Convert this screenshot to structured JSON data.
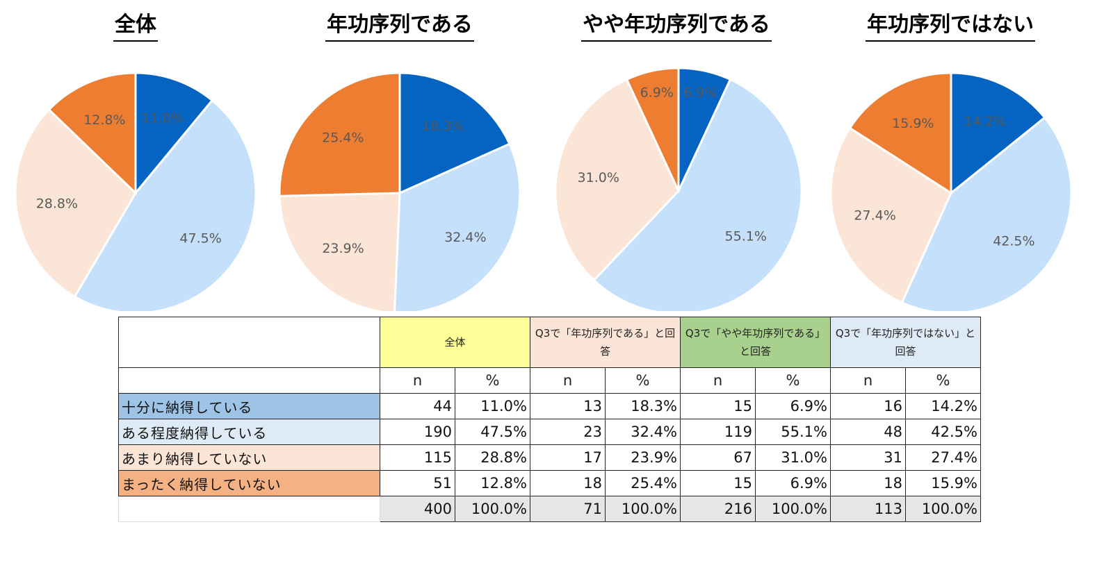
{
  "chart_data": [
    {
      "type": "pie",
      "title": "全体",
      "categories": [
        "十分に納得している",
        "ある程度納得している",
        "あまり納得していない",
        "まったく納得していない"
      ],
      "values": [
        11.0,
        47.5,
        28.8,
        12.8
      ],
      "labels": [
        "11.0%",
        "47.5%",
        "28.8%",
        "12.8%"
      ]
    },
    {
      "type": "pie",
      "title": "年功序列である",
      "categories": [
        "十分に納得している",
        "ある程度納得している",
        "あまり納得していない",
        "まったく納得していない"
      ],
      "values": [
        18.3,
        32.4,
        23.9,
        25.4
      ],
      "labels": [
        "18.3%",
        "32.4%",
        "23.9%",
        "25.4%"
      ]
    },
    {
      "type": "pie",
      "title": "やや年功序列である",
      "categories": [
        "十分に納得している",
        "ある程度納得している",
        "あまり納得していない",
        "まったく納得していない"
      ],
      "values": [
        6.9,
        55.1,
        31.0,
        6.9
      ],
      "labels": [
        "6.9%",
        "55.1%",
        "31.0%",
        "6.9%"
      ]
    },
    {
      "type": "pie",
      "title": "年功序列ではない",
      "categories": [
        "十分に納得している",
        "ある程度納得している",
        "あまり納得していない",
        "まったく納得していない"
      ],
      "values": [
        14.2,
        42.5,
        27.4,
        15.9
      ],
      "labels": [
        "14.2%",
        "42.5%",
        "27.4%",
        "15.9%"
      ]
    }
  ],
  "colors": {
    "slice": [
      "#0563C1",
      "#C5E0FB",
      "#FBE5D6",
      "#ED7D31"
    ],
    "header": [
      "#FFFF99",
      "#FBE5D6",
      "#A9D18E",
      "#DEEBF7"
    ],
    "row_label": [
      "#9DC3E6",
      "#DEEBF7",
      "#FBE5D6",
      "#F4B183"
    ],
    "total_bg": "#E6E6E6"
  },
  "table": {
    "groups": [
      "全体",
      "Q3で「年功序列である」と回答",
      "Q3で「やや年功序列である」と回答",
      "Q3で「年功序列ではない」と回答"
    ],
    "sub_headers": [
      "n",
      "%"
    ],
    "rows": [
      {
        "label": "十分に納得している",
        "cells": [
          "44",
          "11.0%",
          "13",
          "18.3%",
          "15",
          "6.9%",
          "16",
          "14.2%"
        ]
      },
      {
        "label": "ある程度納得している",
        "cells": [
          "190",
          "47.5%",
          "23",
          "32.4%",
          "119",
          "55.1%",
          "48",
          "42.5%"
        ]
      },
      {
        "label": "あまり納得していない",
        "cells": [
          "115",
          "28.8%",
          "17",
          "23.9%",
          "67",
          "31.0%",
          "31",
          "27.4%"
        ]
      },
      {
        "label": "まったく納得していない",
        "cells": [
          "51",
          "12.8%",
          "18",
          "25.4%",
          "15",
          "6.9%",
          "18",
          "15.9%"
        ]
      }
    ],
    "total": {
      "label": "",
      "cells": [
        "400",
        "100.0%",
        "71",
        "100.0%",
        "216",
        "100.0%",
        "113",
        "100.0%"
      ]
    }
  }
}
